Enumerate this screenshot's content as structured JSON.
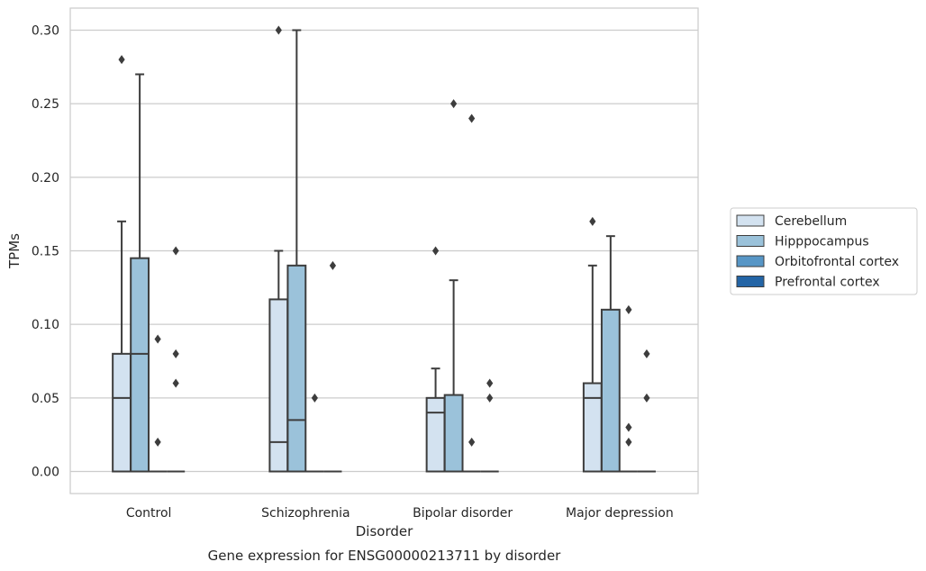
{
  "chart_data": {
    "type": "box",
    "title": "Gene expression for ENSG00000213711 by disorder",
    "xlabel": "Disorder",
    "ylabel": "TPMs",
    "ylim": [
      -0.015,
      0.315
    ],
    "yticks": [
      0.0,
      0.05,
      0.1,
      0.15,
      0.2,
      0.25,
      0.3
    ],
    "ytick_labels": [
      "0.00",
      "0.05",
      "0.10",
      "0.15",
      "0.20",
      "0.25",
      "0.30"
    ],
    "categories": [
      "Control",
      "Schizophrenia",
      "Bipolar disorder",
      "Major depression"
    ],
    "grid": "horizontal",
    "legend_position": "right",
    "series": [
      {
        "name": "Cerebellum",
        "color": "#d3e2f0",
        "boxes": [
          {
            "whislo": 0.0,
            "q1": 0.0,
            "med": 0.05,
            "q3": 0.08,
            "whishi": 0.17,
            "fliers": [
              0.28
            ]
          },
          {
            "whislo": 0.0,
            "q1": 0.0,
            "med": 0.02,
            "q3": 0.117,
            "whishi": 0.15,
            "fliers": [
              0.3
            ]
          },
          {
            "whislo": 0.0,
            "q1": 0.0,
            "med": 0.04,
            "q3": 0.05,
            "whishi": 0.07,
            "fliers": [
              0.15
            ]
          },
          {
            "whislo": 0.0,
            "q1": 0.0,
            "med": 0.05,
            "q3": 0.06,
            "whishi": 0.14,
            "fliers": [
              0.17
            ]
          }
        ]
      },
      {
        "name": "Hipppocampus",
        "color": "#9bc2da",
        "boxes": [
          {
            "whislo": 0.0,
            "q1": 0.0,
            "med": 0.08,
            "q3": 0.145,
            "whishi": 0.27,
            "fliers": []
          },
          {
            "whislo": 0.0,
            "q1": 0.0,
            "med": 0.035,
            "q3": 0.14,
            "whishi": 0.3,
            "fliers": []
          },
          {
            "whislo": 0.0,
            "q1": 0.0,
            "med": 0.0,
            "q3": 0.052,
            "whishi": 0.13,
            "fliers": [
              0.25
            ]
          },
          {
            "whislo": 0.0,
            "q1": 0.0,
            "med": 0.0,
            "q3": 0.11,
            "whishi": 0.16,
            "fliers": []
          }
        ]
      },
      {
        "name": "Orbitofrontal cortex",
        "color": "#5796c6",
        "boxes": [
          {
            "whislo": 0.0,
            "q1": 0.0,
            "med": 0.0,
            "q3": 0.0,
            "whishi": 0.0,
            "fliers": [
              0.09,
              0.02
            ]
          },
          {
            "whislo": 0.0,
            "q1": 0.0,
            "med": 0.0,
            "q3": 0.0,
            "whishi": 0.0,
            "fliers": [
              0.05
            ]
          },
          {
            "whislo": 0.0,
            "q1": 0.0,
            "med": 0.0,
            "q3": 0.0,
            "whishi": 0.0,
            "fliers": [
              0.24,
              0.02
            ]
          },
          {
            "whislo": 0.0,
            "q1": 0.0,
            "med": 0.0,
            "q3": 0.0,
            "whishi": 0.0,
            "fliers": [
              0.11,
              0.03,
              0.02
            ]
          }
        ]
      },
      {
        "name": "Prefrontal cortex",
        "color": "#2465a6",
        "boxes": [
          {
            "whislo": 0.0,
            "q1": 0.0,
            "med": 0.0,
            "q3": 0.0,
            "whishi": 0.0,
            "fliers": [
              0.15,
              0.08,
              0.06
            ]
          },
          {
            "whislo": 0.0,
            "q1": 0.0,
            "med": 0.0,
            "q3": 0.0,
            "whishi": 0.0,
            "fliers": [
              0.14
            ]
          },
          {
            "whislo": 0.0,
            "q1": 0.0,
            "med": 0.0,
            "q3": 0.0,
            "whishi": 0.0,
            "fliers": [
              0.06,
              0.05
            ]
          },
          {
            "whislo": 0.0,
            "q1": 0.0,
            "med": 0.0,
            "q3": 0.0,
            "whishi": 0.0,
            "fliers": [
              0.08,
              0.05
            ]
          }
        ]
      }
    ]
  },
  "styles": {
    "grid_color": "#cccccc",
    "frame_color": "#cccccc",
    "line_color": "#3d3d3d",
    "flier_color": "#3d3d3d",
    "legend_border": "#cccccc"
  }
}
